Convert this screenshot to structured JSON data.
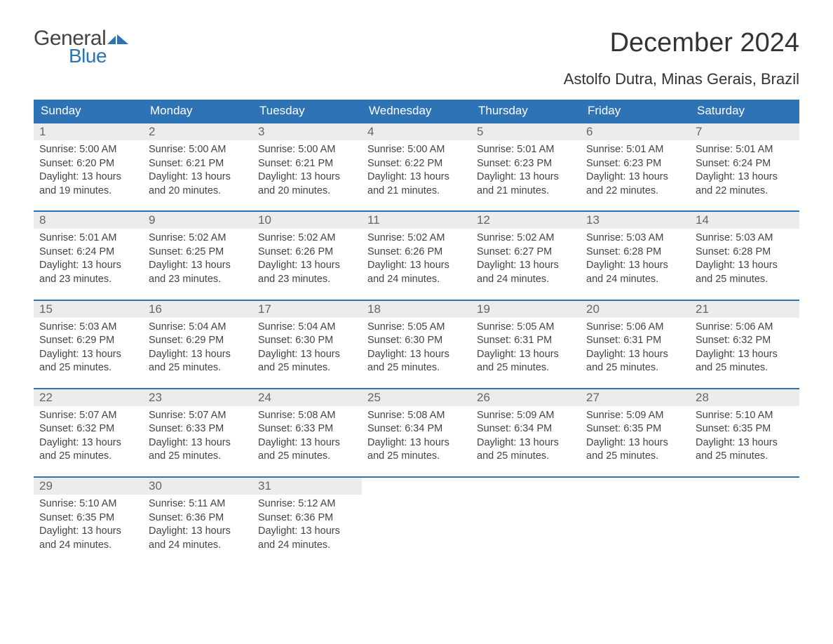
{
  "logo": {
    "text_general": "General",
    "text_blue": "Blue"
  },
  "title": "December 2024",
  "subtitle": "Astolfo Dutra, Minas Gerais, Brazil",
  "colors": {
    "header_bg": "#2d73b6",
    "header_text": "#ffffff",
    "daynum_bg": "#ececec",
    "daynum_text": "#666666",
    "body_text": "#444444",
    "week_border": "#2d73b6",
    "logo_blue": "#2d73b6",
    "background": "#ffffff"
  },
  "typography": {
    "title_fontsize": 38,
    "subtitle_fontsize": 22,
    "dow_fontsize": 17,
    "daynum_fontsize": 17,
    "body_fontsize": 14.5,
    "font_family": "Arial"
  },
  "days_of_week": [
    "Sunday",
    "Monday",
    "Tuesday",
    "Wednesday",
    "Thursday",
    "Friday",
    "Saturday"
  ],
  "weeks": [
    [
      {
        "n": "1",
        "sunrise": "Sunrise: 5:00 AM",
        "sunset": "Sunset: 6:20 PM",
        "daylight1": "Daylight: 13 hours",
        "daylight2": "and 19 minutes."
      },
      {
        "n": "2",
        "sunrise": "Sunrise: 5:00 AM",
        "sunset": "Sunset: 6:21 PM",
        "daylight1": "Daylight: 13 hours",
        "daylight2": "and 20 minutes."
      },
      {
        "n": "3",
        "sunrise": "Sunrise: 5:00 AM",
        "sunset": "Sunset: 6:21 PM",
        "daylight1": "Daylight: 13 hours",
        "daylight2": "and 20 minutes."
      },
      {
        "n": "4",
        "sunrise": "Sunrise: 5:00 AM",
        "sunset": "Sunset: 6:22 PM",
        "daylight1": "Daylight: 13 hours",
        "daylight2": "and 21 minutes."
      },
      {
        "n": "5",
        "sunrise": "Sunrise: 5:01 AM",
        "sunset": "Sunset: 6:23 PM",
        "daylight1": "Daylight: 13 hours",
        "daylight2": "and 21 minutes."
      },
      {
        "n": "6",
        "sunrise": "Sunrise: 5:01 AM",
        "sunset": "Sunset: 6:23 PM",
        "daylight1": "Daylight: 13 hours",
        "daylight2": "and 22 minutes."
      },
      {
        "n": "7",
        "sunrise": "Sunrise: 5:01 AM",
        "sunset": "Sunset: 6:24 PM",
        "daylight1": "Daylight: 13 hours",
        "daylight2": "and 22 minutes."
      }
    ],
    [
      {
        "n": "8",
        "sunrise": "Sunrise: 5:01 AM",
        "sunset": "Sunset: 6:24 PM",
        "daylight1": "Daylight: 13 hours",
        "daylight2": "and 23 minutes."
      },
      {
        "n": "9",
        "sunrise": "Sunrise: 5:02 AM",
        "sunset": "Sunset: 6:25 PM",
        "daylight1": "Daylight: 13 hours",
        "daylight2": "and 23 minutes."
      },
      {
        "n": "10",
        "sunrise": "Sunrise: 5:02 AM",
        "sunset": "Sunset: 6:26 PM",
        "daylight1": "Daylight: 13 hours",
        "daylight2": "and 23 minutes."
      },
      {
        "n": "11",
        "sunrise": "Sunrise: 5:02 AM",
        "sunset": "Sunset: 6:26 PM",
        "daylight1": "Daylight: 13 hours",
        "daylight2": "and 24 minutes."
      },
      {
        "n": "12",
        "sunrise": "Sunrise: 5:02 AM",
        "sunset": "Sunset: 6:27 PM",
        "daylight1": "Daylight: 13 hours",
        "daylight2": "and 24 minutes."
      },
      {
        "n": "13",
        "sunrise": "Sunrise: 5:03 AM",
        "sunset": "Sunset: 6:28 PM",
        "daylight1": "Daylight: 13 hours",
        "daylight2": "and 24 minutes."
      },
      {
        "n": "14",
        "sunrise": "Sunrise: 5:03 AM",
        "sunset": "Sunset: 6:28 PM",
        "daylight1": "Daylight: 13 hours",
        "daylight2": "and 25 minutes."
      }
    ],
    [
      {
        "n": "15",
        "sunrise": "Sunrise: 5:03 AM",
        "sunset": "Sunset: 6:29 PM",
        "daylight1": "Daylight: 13 hours",
        "daylight2": "and 25 minutes."
      },
      {
        "n": "16",
        "sunrise": "Sunrise: 5:04 AM",
        "sunset": "Sunset: 6:29 PM",
        "daylight1": "Daylight: 13 hours",
        "daylight2": "and 25 minutes."
      },
      {
        "n": "17",
        "sunrise": "Sunrise: 5:04 AM",
        "sunset": "Sunset: 6:30 PM",
        "daylight1": "Daylight: 13 hours",
        "daylight2": "and 25 minutes."
      },
      {
        "n": "18",
        "sunrise": "Sunrise: 5:05 AM",
        "sunset": "Sunset: 6:30 PM",
        "daylight1": "Daylight: 13 hours",
        "daylight2": "and 25 minutes."
      },
      {
        "n": "19",
        "sunrise": "Sunrise: 5:05 AM",
        "sunset": "Sunset: 6:31 PM",
        "daylight1": "Daylight: 13 hours",
        "daylight2": "and 25 minutes."
      },
      {
        "n": "20",
        "sunrise": "Sunrise: 5:06 AM",
        "sunset": "Sunset: 6:31 PM",
        "daylight1": "Daylight: 13 hours",
        "daylight2": "and 25 minutes."
      },
      {
        "n": "21",
        "sunrise": "Sunrise: 5:06 AM",
        "sunset": "Sunset: 6:32 PM",
        "daylight1": "Daylight: 13 hours",
        "daylight2": "and 25 minutes."
      }
    ],
    [
      {
        "n": "22",
        "sunrise": "Sunrise: 5:07 AM",
        "sunset": "Sunset: 6:32 PM",
        "daylight1": "Daylight: 13 hours",
        "daylight2": "and 25 minutes."
      },
      {
        "n": "23",
        "sunrise": "Sunrise: 5:07 AM",
        "sunset": "Sunset: 6:33 PM",
        "daylight1": "Daylight: 13 hours",
        "daylight2": "and 25 minutes."
      },
      {
        "n": "24",
        "sunrise": "Sunrise: 5:08 AM",
        "sunset": "Sunset: 6:33 PM",
        "daylight1": "Daylight: 13 hours",
        "daylight2": "and 25 minutes."
      },
      {
        "n": "25",
        "sunrise": "Sunrise: 5:08 AM",
        "sunset": "Sunset: 6:34 PM",
        "daylight1": "Daylight: 13 hours",
        "daylight2": "and 25 minutes."
      },
      {
        "n": "26",
        "sunrise": "Sunrise: 5:09 AM",
        "sunset": "Sunset: 6:34 PM",
        "daylight1": "Daylight: 13 hours",
        "daylight2": "and 25 minutes."
      },
      {
        "n": "27",
        "sunrise": "Sunrise: 5:09 AM",
        "sunset": "Sunset: 6:35 PM",
        "daylight1": "Daylight: 13 hours",
        "daylight2": "and 25 minutes."
      },
      {
        "n": "28",
        "sunrise": "Sunrise: 5:10 AM",
        "sunset": "Sunset: 6:35 PM",
        "daylight1": "Daylight: 13 hours",
        "daylight2": "and 25 minutes."
      }
    ],
    [
      {
        "n": "29",
        "sunrise": "Sunrise: 5:10 AM",
        "sunset": "Sunset: 6:35 PM",
        "daylight1": "Daylight: 13 hours",
        "daylight2": "and 24 minutes."
      },
      {
        "n": "30",
        "sunrise": "Sunrise: 5:11 AM",
        "sunset": "Sunset: 6:36 PM",
        "daylight1": "Daylight: 13 hours",
        "daylight2": "and 24 minutes."
      },
      {
        "n": "31",
        "sunrise": "Sunrise: 5:12 AM",
        "sunset": "Sunset: 6:36 PM",
        "daylight1": "Daylight: 13 hours",
        "daylight2": "and 24 minutes."
      },
      null,
      null,
      null,
      null
    ]
  ]
}
